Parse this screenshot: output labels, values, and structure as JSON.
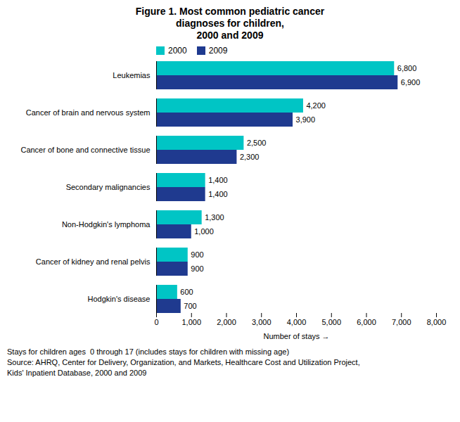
{
  "chart_data": {
    "type": "bar",
    "orientation": "horizontal",
    "title": "Figure 1. Most common pediatric cancer\ndiagnoses for children,\n2000 and 2009",
    "categories": [
      "Leukemias",
      "Cancer of brain and nervous system",
      "Cancer of bone and connective tissue",
      "Secondary malignancies",
      "Non-Hodgkin's lymphoma",
      "Cancer of kidney and renal pelvis",
      "Hodgkin's disease"
    ],
    "series": [
      {
        "name": "2000",
        "color": "#00C5C5",
        "values": [
          6800,
          4200,
          2500,
          1400,
          1300,
          900,
          600
        ],
        "value_labels": [
          "6,800",
          "4,200",
          "2,500",
          "1,400",
          "1,300",
          "900",
          "600"
        ]
      },
      {
        "name": "2009",
        "color": "#1F3A8F",
        "values": [
          6900,
          3900,
          2300,
          1400,
          1000,
          900,
          700
        ],
        "value_labels": [
          "6,900",
          "3,900",
          "2,300",
          "1,400",
          "1,000",
          "900",
          "700"
        ]
      }
    ],
    "xlabel": "Number of stays",
    "xlim": [
      0,
      8000
    ],
    "xticks": [
      0,
      {
        "value": 1000,
        "label": "1,000"
      },
      {
        "value": 2000,
        "label": "2,000"
      },
      {
        "value": 3000,
        "label": "3,000"
      },
      {
        "value": 4000,
        "label": "4,000"
      },
      {
        "value": 5000,
        "label": "5,000"
      },
      {
        "value": 6000,
        "label": "6,000"
      },
      {
        "value": 7000,
        "label": "7,000"
      },
      {
        "value": 8000,
        "label": "8,000"
      }
    ],
    "data_labels": true,
    "legend": "upper left",
    "grid": false,
    "annotations": [
      "Stays for children ages  0 through 17 (includes stays for children with missing age)",
      "Source: AHRQ, Center for Delivery, Organization, and Markets, Healthcare Cost and Utilization Project,",
      "Kids' Inpatient Database, 2000 and 2009"
    ]
  }
}
